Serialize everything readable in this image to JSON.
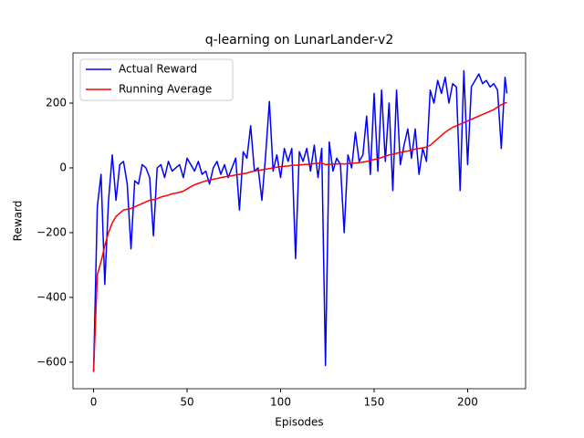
{
  "chart_data": {
    "type": "line",
    "title": "q-learning on LunarLander-v2",
    "xlabel": "Episodes",
    "ylabel": "Reward",
    "x": [
      0,
      2,
      4,
      6,
      8,
      10,
      12,
      14,
      16,
      18,
      20,
      22,
      24,
      26,
      28,
      30,
      32,
      34,
      36,
      38,
      40,
      42,
      44,
      46,
      48,
      50,
      52,
      54,
      56,
      58,
      60,
      62,
      64,
      66,
      68,
      70,
      72,
      74,
      76,
      78,
      80,
      82,
      84,
      86,
      88,
      90,
      92,
      94,
      96,
      98,
      100,
      102,
      104,
      106,
      108,
      110,
      112,
      114,
      116,
      118,
      120,
      122,
      124,
      126,
      128,
      130,
      132,
      134,
      136,
      138,
      140,
      142,
      144,
      146,
      148,
      150,
      152,
      154,
      156,
      158,
      160,
      162,
      164,
      166,
      168,
      170,
      172,
      174,
      176,
      178,
      180,
      182,
      184,
      186,
      188,
      190,
      192,
      194,
      196,
      198,
      200,
      202,
      204,
      206,
      208,
      210,
      212,
      214,
      216,
      218,
      220,
      221
    ],
    "series": [
      {
        "name": "Actual Reward",
        "color": "#0000ff",
        "values": [
          -630,
          -120,
          -20,
          -360,
          -100,
          40,
          -100,
          10,
          20,
          -50,
          -250,
          -40,
          -50,
          10,
          0,
          -30,
          -210,
          0,
          10,
          -30,
          20,
          -10,
          0,
          10,
          -30,
          30,
          10,
          -10,
          20,
          -20,
          -10,
          -50,
          0,
          20,
          -20,
          10,
          -30,
          0,
          30,
          -130,
          50,
          30,
          130,
          -10,
          0,
          -100,
          40,
          205,
          -10,
          40,
          -30,
          60,
          20,
          60,
          -280,
          50,
          20,
          60,
          -10,
          70,
          -30,
          60,
          -610,
          80,
          -10,
          30,
          10,
          -200,
          40,
          0,
          110,
          20,
          40,
          160,
          -20,
          230,
          -10,
          240,
          20,
          200,
          -70,
          240,
          10,
          70,
          120,
          30,
          120,
          -20,
          60,
          20,
          240,
          200,
          270,
          230,
          280,
          200,
          260,
          250,
          -70,
          300,
          10,
          250,
          270,
          290,
          260,
          270,
          250,
          260,
          240,
          60,
          280,
          230
        ]
      },
      {
        "name": "Running Average",
        "color": "#ff0000",
        "values": [
          -630,
          -330,
          -290,
          -240,
          -200,
          -170,
          -150,
          -140,
          -130,
          -128,
          -125,
          -120,
          -115,
          -110,
          -105,
          -100,
          -98,
          -95,
          -90,
          -87,
          -84,
          -80,
          -78,
          -75,
          -72,
          -65,
          -58,
          -52,
          -48,
          -44,
          -40,
          -38,
          -35,
          -33,
          -30,
          -28,
          -26,
          -24,
          -22,
          -20,
          -18,
          -16,
          -12,
          -10,
          -8,
          -6,
          -4,
          -2,
          0,
          2,
          4,
          5,
          6,
          8,
          8,
          9,
          10,
          11,
          12,
          13,
          14,
          15,
          10,
          11,
          12,
          12,
          13,
          12,
          13,
          14,
          15,
          16,
          18,
          20,
          22,
          26,
          28,
          32,
          36,
          40,
          42,
          45,
          48,
          50,
          52,
          55,
          58,
          60,
          62,
          64,
          70,
          80,
          90,
          100,
          110,
          118,
          125,
          130,
          135,
          140,
          145,
          150,
          155,
          160,
          165,
          170,
          175,
          180,
          188,
          195,
          200,
          202
        ]
      }
    ],
    "xlim": [
      -11,
      231
    ],
    "xticks": [
      0,
      50,
      100,
      150,
      200
    ],
    "ylim": [
      -682,
      355
    ],
    "yticks": [
      -600,
      -400,
      -200,
      0,
      200
    ],
    "legend": "upper left"
  }
}
